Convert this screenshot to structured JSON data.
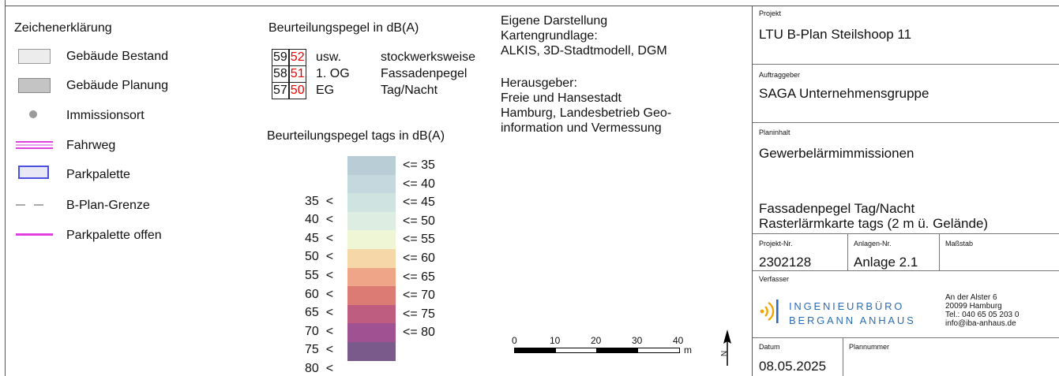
{
  "legend": {
    "title": "Zeichenerklärung",
    "items": [
      {
        "label": "Gebäude Bestand",
        "symbol": "building-existing-icon"
      },
      {
        "label": "Gebäude Planung",
        "symbol": "building-planned-icon"
      },
      {
        "label": "Immissionsort",
        "symbol": "receiver-point-icon"
      },
      {
        "label": "Fahrweg",
        "symbol": "driveway-icon"
      },
      {
        "label": "Parkpalette",
        "symbol": "parking-deck-icon"
      },
      {
        "label": "B-Plan-Grenze",
        "symbol": "plan-boundary-icon"
      },
      {
        "label": "Parkpalette offen",
        "symbol": "parking-deck-open-icon"
      }
    ]
  },
  "levels": {
    "title": "Beurteilungspegel in dB(A)",
    "rows": [
      {
        "day": "59",
        "night": "52",
        "floor": "usw.",
        "desc": "stockwerksweise"
      },
      {
        "day": "58",
        "night": "51",
        "floor": "1. OG",
        "desc": "Fassadenpegel"
      },
      {
        "day": "57",
        "night": "50",
        "floor": "EG",
        "desc": "Tag/Nacht"
      }
    ]
  },
  "scale_legend": {
    "title": "Beurteilungspegel tags in dB(A)",
    "classes": [
      {
        "lower": "",
        "upper": "<= 35",
        "color": "#b8cdd6"
      },
      {
        "lower": "35  <",
        "upper": "<= 40",
        "color": "#c4d8dd"
      },
      {
        "lower": "40  <",
        "upper": "<= 45",
        "color": "#cfe3e1"
      },
      {
        "lower": "45  <",
        "upper": "<= 50",
        "color": "#deede1"
      },
      {
        "lower": "50  <",
        "upper": "<= 55",
        "color": "#eef6d6"
      },
      {
        "lower": "55  <",
        "upper": "<= 60",
        "color": "#f6d7a8"
      },
      {
        "lower": "60  <",
        "upper": "<= 65",
        "color": "#efa688"
      },
      {
        "lower": "65  <",
        "upper": "<= 70",
        "color": "#db7b74"
      },
      {
        "lower": "70  <",
        "upper": "<= 75",
        "color": "#bf5d80"
      },
      {
        "lower": "75  <",
        "upper": "<= 80",
        "color": "#a05191"
      },
      {
        "lower": "80  <",
        "upper": "",
        "color": "#7a5a8a"
      }
    ]
  },
  "source": {
    "lines": [
      "Eigene Darstellung",
      "Kartengrundlage:",
      "ALKIS, 3D-Stadtmodell, DGM",
      "",
      "Herausgeber:",
      "Freie und Hansestadt",
      "Hamburg, Landesbetrieb Geo-",
      "information und Vermessung"
    ]
  },
  "scalebar": {
    "ticks": [
      "0",
      "10",
      "20",
      "30",
      "40"
    ],
    "unit": "m"
  },
  "north": {
    "label": "N"
  },
  "titleblock": {
    "projekt_label": "Projekt",
    "projekt": "LTU B-Plan Steilshoop 11",
    "auftraggeber_label": "Auftraggeber",
    "auftraggeber": "SAGA Unternehmensgruppe",
    "planinhalt_label": "Planinhalt",
    "planinhalt1": "Gewerbelärmimmissionen",
    "planinhalt2": "Fassadenpegel Tag/Nacht",
    "planinhalt3": "Rasterlärmkarte tags (2 m ü. Gelände)",
    "projektnr_label": "Projekt-Nr.",
    "projektnr": "2302128",
    "anlagennr_label": "Anlagen-Nr.",
    "anlagennr": "Anlage 2.1",
    "massstab_label": "Maßstab",
    "massstab": "",
    "verfasser_label": "Verfasser",
    "firm_line1": "INGENIEURBÜRO",
    "firm_line2": "BERGANN ANHAUS",
    "address": [
      "An der Alster 6",
      "20099 Hamburg",
      "Tel.: 040 65 05 203 0",
      "info@iba-anhaus.de"
    ],
    "datum_label": "Datum",
    "datum": "08.05.2025",
    "plannummer_label": "Plannummer",
    "plannummer": ""
  },
  "colors": {
    "accent_blue": "#2a6db5",
    "accent_orange": "#f0a500",
    "driveway": "#e040e0",
    "red_value": "#e00000"
  }
}
